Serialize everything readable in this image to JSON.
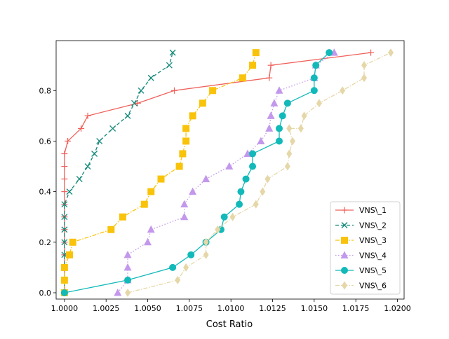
{
  "chart_data": {
    "type": "line",
    "title": "",
    "xlabel": "Cost Ratio",
    "ylabel": "",
    "xlim": [
      0.9995,
      1.0204
    ],
    "ylim": [
      -0.025,
      0.9975
    ],
    "xticks": [
      1.0,
      1.0025,
      1.005,
      1.0075,
      1.01,
      1.0125,
      1.015,
      1.0175,
      1.02
    ],
    "xtick_labels": [
      "1.0000",
      "1.0025",
      "1.0050",
      "1.0075",
      "1.0100",
      "1.0125",
      "1.0150",
      "1.0175",
      "1.0200"
    ],
    "yticks": [
      0.0,
      0.2,
      0.4,
      0.6,
      0.8
    ],
    "ytick_labels": [
      "0.0",
      "0.2",
      "0.4",
      "0.6",
      "0.8"
    ],
    "grid": false,
    "legend_position": "lower-right",
    "series": [
      {
        "name": "VNS\\_1",
        "color": "#f0605a",
        "marker": "plus",
        "dash": "solid",
        "x": [
          1.0,
          1.0,
          1.0,
          1.0,
          1.0,
          1.0,
          1.0,
          1.0,
          1.0,
          1.0,
          1.0,
          1.0,
          1.0002,
          1.001,
          1.0014,
          1.0044,
          1.0066,
          1.0123,
          1.0124,
          1.0184
        ],
        "y": [
          0.0,
          0.05,
          0.1,
          0.15,
          0.2,
          0.25,
          0.3,
          0.35,
          0.4,
          0.45,
          0.5,
          0.55,
          0.6,
          0.65,
          0.7,
          0.75,
          0.8,
          0.85,
          0.9,
          0.95
        ]
      },
      {
        "name": "VNS\\_2",
        "color": "#13897a",
        "marker": "x",
        "dash": "dashed",
        "x": [
          1.0,
          1.0,
          1.0,
          1.0,
          1.0,
          1.0,
          1.0,
          1.0,
          1.0003,
          1.0009,
          1.0014,
          1.0018,
          1.0021,
          1.0029,
          1.0038,
          1.0042,
          1.0046,
          1.0052,
          1.0063,
          1.0065
        ],
        "y": [
          0.0,
          0.05,
          0.1,
          0.15,
          0.2,
          0.25,
          0.3,
          0.35,
          0.4,
          0.45,
          0.5,
          0.55,
          0.6,
          0.65,
          0.7,
          0.75,
          0.8,
          0.85,
          0.9,
          0.95
        ]
      },
      {
        "name": "VNS\\_3",
        "color": "#f8c30a",
        "marker": "square",
        "dash": "dashdot",
        "x": [
          1.0,
          1.0,
          1.0,
          1.0003,
          1.0005,
          1.0028,
          1.0035,
          1.0048,
          1.0052,
          1.0058,
          1.0069,
          1.0071,
          1.0073,
          1.0073,
          1.0077,
          1.0083,
          1.0089,
          1.0107,
          1.0113,
          1.0115
        ],
        "y": [
          0.0,
          0.05,
          0.1,
          0.15,
          0.2,
          0.25,
          0.3,
          0.35,
          0.4,
          0.45,
          0.5,
          0.55,
          0.6,
          0.65,
          0.7,
          0.75,
          0.8,
          0.85,
          0.9,
          0.95
        ]
      },
      {
        "name": "VNS\\_4",
        "color": "#c398ec",
        "marker": "triangle",
        "dash": "dotted",
        "x": [
          1.0032,
          1.0038,
          1.0038,
          1.0038,
          1.005,
          1.0052,
          1.0072,
          1.0072,
          1.0077,
          1.0085,
          1.0099,
          1.011,
          1.0118,
          1.0123,
          1.0124,
          1.0126,
          1.0129,
          1.015,
          1.0151,
          1.0162
        ],
        "y": [
          0.0,
          0.05,
          0.1,
          0.15,
          0.2,
          0.25,
          0.3,
          0.35,
          0.4,
          0.45,
          0.5,
          0.55,
          0.6,
          0.65,
          0.7,
          0.75,
          0.8,
          0.85,
          0.9,
          0.95
        ]
      },
      {
        "name": "VNS\\_5",
        "color": "#12b9b9",
        "marker": "circle",
        "dash": "solid",
        "x": [
          1.0,
          1.0038,
          1.0065,
          1.0076,
          1.0085,
          1.0094,
          1.0096,
          1.0105,
          1.0106,
          1.0109,
          1.0113,
          1.0113,
          1.0129,
          1.0129,
          1.0131,
          1.0134,
          1.015,
          1.015,
          1.0151,
          1.0159
        ],
        "y": [
          0.0,
          0.05,
          0.1,
          0.15,
          0.2,
          0.25,
          0.3,
          0.35,
          0.4,
          0.45,
          0.5,
          0.55,
          0.6,
          0.65,
          0.7,
          0.75,
          0.8,
          0.85,
          0.9,
          0.95
        ]
      },
      {
        "name": "VNS\\_6",
        "color": "#e6d7a8",
        "marker": "diamond",
        "dash": "dashdot",
        "x": [
          1.0038,
          1.0068,
          1.0073,
          1.0085,
          1.0085,
          1.0092,
          1.0101,
          1.0115,
          1.0119,
          1.0122,
          1.0134,
          1.0135,
          1.0137,
          1.0135,
          1.0142,
          1.0144,
          1.0153,
          1.0167,
          1.018,
          1.018,
          1.0196
        ],
        "y": [
          0.0,
          0.05,
          0.1,
          0.15,
          0.2,
          0.25,
          0.3,
          0.35,
          0.4,
          0.45,
          0.5,
          0.55,
          0.6,
          0.65,
          0.65,
          0.7,
          0.75,
          0.8,
          0.85,
          0.9,
          0.95
        ]
      }
    ]
  }
}
